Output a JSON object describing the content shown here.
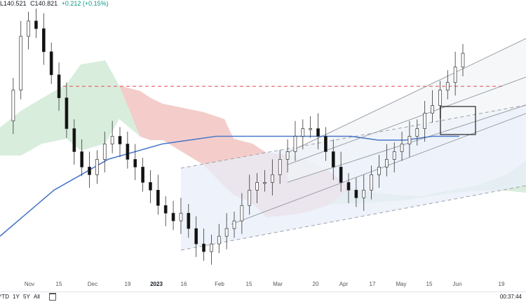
{
  "header": {
    "low": "L140.521",
    "close": "C140.821",
    "change": "+0.212 (+0.15%)"
  },
  "colors": {
    "up_candle": "#444444",
    "down_candle": "#111111",
    "cloud_bull": "#cfe8d4",
    "cloud_bear": "#f8c7c7",
    "moving_average": "#4a78c9",
    "resistance": "#e06060",
    "channel": "#9aa0aa",
    "channel_fill": "#e8eef8"
  },
  "chart_data": {
    "type": "candlestick",
    "x_tick_labels": [
      "Nov",
      "15",
      "Dec",
      "19",
      "2023",
      "16",
      "Feb",
      "15",
      "Mar",
      "20",
      "Apr",
      "17",
      "May",
      "15",
      "Jun",
      "19"
    ],
    "price_series": [
      132,
      136,
      143,
      145,
      144,
      141,
      138,
      135,
      131,
      128,
      126,
      125,
      127,
      129,
      130,
      129,
      127,
      126,
      124,
      123,
      121,
      120,
      119,
      120,
      118,
      116,
      115,
      116,
      117,
      118,
      119,
      121,
      123,
      124,
      124,
      125,
      127,
      128,
      130,
      131,
      131,
      130,
      128,
      126,
      124,
      123,
      122,
      123,
      125,
      126,
      127,
      128,
      129,
      130,
      131,
      133,
      134,
      136,
      137,
      139,
      140.8
    ],
    "moving_average": [
      117,
      120,
      123,
      125,
      127,
      128,
      129,
      129.5,
      130,
      130,
      130,
      130,
      130,
      130,
      129.5,
      129.5,
      130,
      130
    ],
    "resistance_level": 136.5,
    "y_range": [
      112,
      147
    ]
  },
  "bottombar": {
    "ranges": [
      "YTD",
      "1Y",
      "5Y",
      "All"
    ],
    "clock": "00:37:44"
  }
}
